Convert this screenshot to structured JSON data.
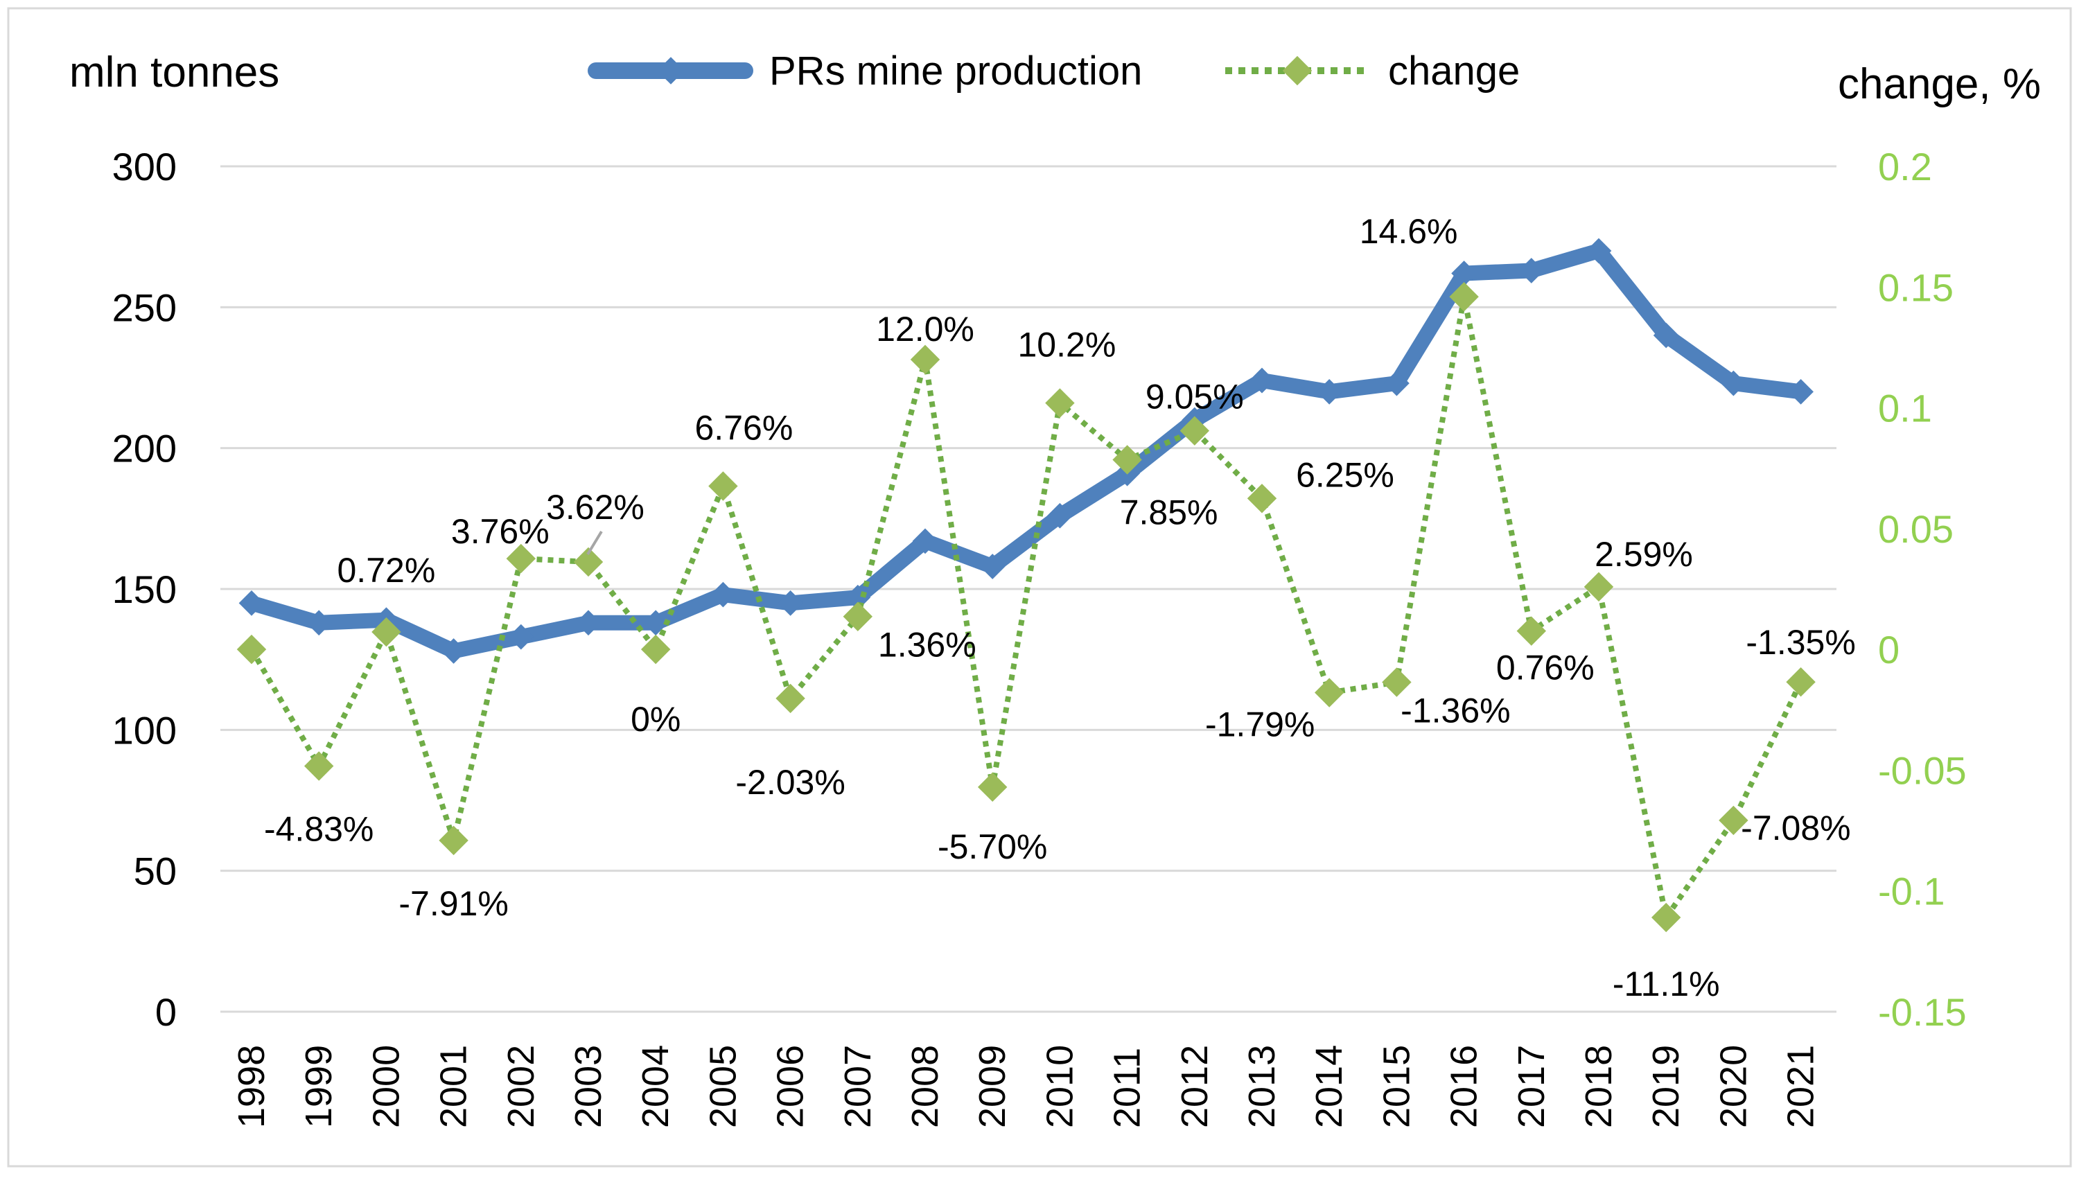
{
  "chart_data": {
    "type": "line",
    "x": [
      "1998",
      "1999",
      "2000",
      "2001",
      "2002",
      "2003",
      "2004",
      "2005",
      "2006",
      "2007",
      "2008",
      "2009",
      "2010",
      "2011",
      "2012",
      "2013",
      "2014",
      "2015",
      "2016",
      "2017",
      "2018",
      "2019",
      "2020",
      "2021"
    ],
    "series": [
      {
        "name": "PRs mine production",
        "axis": "left",
        "color": "#4f81bd",
        "values": [
          145,
          138,
          139,
          128,
          133,
          138,
          138,
          148,
          145,
          147,
          167,
          158,
          176,
          191,
          210,
          224,
          220,
          223,
          262,
          263,
          270,
          240,
          223,
          220
        ]
      },
      {
        "name": "change",
        "axis": "right",
        "color": "#9bbb59",
        "line_color": "#70ad47",
        "values": [
          0,
          -0.0483,
          0.0072,
          -0.0791,
          0.0376,
          0.0362,
          0,
          0.0676,
          -0.0203,
          0.0136,
          0.12,
          -0.057,
          0.102,
          0.0785,
          0.0905,
          0.0625,
          -0.0179,
          -0.0136,
          0.146,
          0.0076,
          0.0259,
          -0.111,
          -0.0708,
          -0.0135
        ],
        "data_labels": [
          "",
          "-4.83%",
          "0.72%",
          "-7.91%",
          "3.76%",
          "3.62%",
          "0%",
          "6.76%",
          "-2.03%",
          "1.36%",
          "12.0%",
          "-5.70%",
          "10.2%",
          "7.85%",
          "9.05%",
          "6.25%",
          "-1.79%",
          "-1.36%",
          "14.6%",
          "0.76%",
          "2.59%",
          "-11.1%",
          "-7.08%",
          "-1.35%"
        ]
      }
    ],
    "ylabel_left": "mln tonnes",
    "ylabel_right": "change, %",
    "ylim_left": [
      0,
      300
    ],
    "ylim_right": [
      -0.15,
      0.2
    ],
    "yticks_left": [
      "0",
      "50",
      "100",
      "150",
      "200",
      "250",
      "300"
    ],
    "yticks_right": [
      "-0.15",
      "-0.1",
      "-0.05",
      "0",
      "0.05",
      "0.1",
      "0.15",
      "0.2"
    ],
    "grid": true,
    "legend_position": "top-center"
  }
}
